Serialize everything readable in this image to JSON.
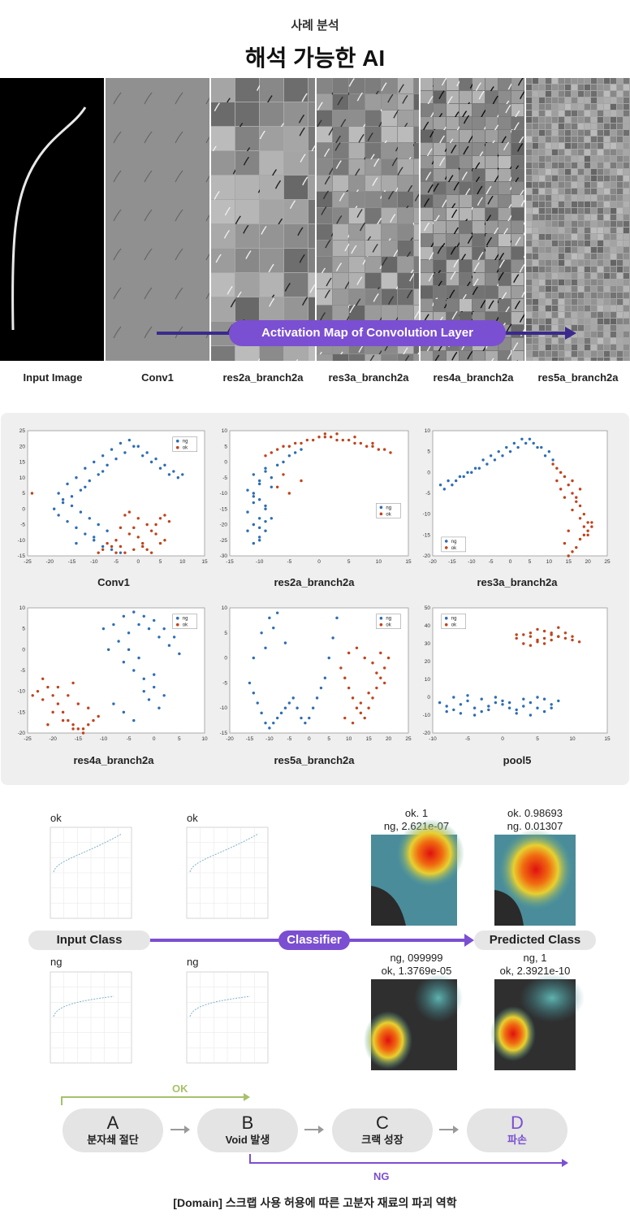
{
  "header": {
    "subtitle": "사례 분석",
    "title": "해석 가능한 AI"
  },
  "activation": {
    "banner": "Activation Map of Convolution Layer",
    "layers": [
      "Input Image",
      "Conv1",
      "res2a_branch2a",
      "res3a_branch2a",
      "res4a_branch2a",
      "res5a_branch2a"
    ],
    "panel_shades": [
      "#000000",
      "#9a9a9a",
      "#a8a8a8",
      "#8f8f8f",
      "#7a7a7a",
      "#a5a5a5"
    ]
  },
  "chart_data": [
    {
      "type": "scatter",
      "title": "Conv1",
      "xlim": [
        -25,
        15
      ],
      "ylim": [
        -15,
        25
      ],
      "xticks": [
        -25,
        -20,
        -15,
        -10,
        -5,
        0,
        5,
        10,
        15
      ],
      "yticks": [
        -15,
        -10,
        -5,
        0,
        5,
        10,
        15,
        20,
        25
      ],
      "legend": [
        "ng",
        "ok"
      ],
      "legend_position": "top-right",
      "series": [
        {
          "name": "ng",
          "color": "#2e6db4",
          "x": [
            -18,
            -16,
            -14,
            -12,
            -10,
            -8,
            -6,
            -4,
            -2,
            0,
            2,
            4,
            6,
            8,
            10,
            -17,
            -15,
            -13,
            -11,
            -9,
            -7,
            -5,
            -3,
            -1,
            1,
            3,
            5,
            7,
            9,
            -19,
            -18,
            -16,
            -14,
            -12,
            -10,
            -8,
            -6,
            -4,
            -15,
            -13,
            -11,
            -9,
            -7,
            -17,
            -12,
            -8,
            -10,
            -14
          ],
          "y": [
            5,
            8,
            10,
            13,
            15,
            17,
            19,
            21,
            22,
            20,
            18,
            16,
            14,
            12,
            11,
            2,
            4,
            6,
            9,
            11,
            14,
            16,
            18,
            20,
            17,
            15,
            13,
            11,
            10,
            0,
            -2,
            -4,
            -6,
            -8,
            -10,
            -12,
            -13,
            -14,
            1,
            -1,
            -3,
            -5,
            -7,
            3,
            7,
            12,
            -9,
            -11
          ]
        },
        {
          "name": "ok",
          "color": "#c0431c",
          "x": [
            -5,
            -4,
            -3,
            -2,
            -1,
            0,
            1,
            2,
            3,
            4,
            5,
            6,
            7,
            -6,
            -5,
            -4,
            -3,
            -2,
            0,
            2,
            4,
            6,
            -1,
            1,
            3,
            5,
            -24,
            -8,
            -7,
            -9
          ],
          "y": [
            -10,
            -12,
            -14,
            -8,
            -6,
            -9,
            -11,
            -13,
            -7,
            -5,
            -3,
            -2,
            -4,
            -12,
            -14,
            -6,
            -2,
            -1,
            -3,
            -5,
            -8,
            -10,
            -13,
            -12,
            -14,
            -11,
            5,
            -13,
            -11,
            -14
          ]
        }
      ]
    },
    {
      "type": "scatter",
      "title": "res2a_branch2a",
      "xlim": [
        -15,
        15
      ],
      "ylim": [
        -30,
        10
      ],
      "xticks": [
        -15,
        -10,
        -5,
        0,
        5,
        10,
        15
      ],
      "yticks": [
        -30,
        -25,
        -20,
        -15,
        -10,
        -5,
        0,
        5,
        10
      ],
      "legend": [
        "ng",
        "ok"
      ],
      "legend_position": "middle-right",
      "series": [
        {
          "name": "ng",
          "color": "#2e6db4",
          "x": [
            -11,
            -10,
            -9,
            -11,
            -10,
            -12,
            -9,
            -10,
            -11,
            -8,
            -10,
            -11,
            -9,
            -12,
            -10,
            -8,
            -9,
            -11,
            -10,
            -9,
            -7,
            -6,
            -8,
            -5,
            -4,
            -3,
            -11,
            -10,
            -12,
            -9
          ],
          "y": [
            -26,
            -24,
            -22,
            -20,
            -18,
            -16,
            -14,
            -12,
            -10,
            -8,
            -6,
            -4,
            -2,
            -22,
            -25,
            -18,
            -15,
            -11,
            -7,
            -3,
            -1,
            0,
            -5,
            2,
            3,
            4,
            -13,
            -21,
            -9,
            -19
          ]
        },
        {
          "name": "ok",
          "color": "#c0431c",
          "x": [
            -9,
            -8,
            -7,
            -6,
            -5,
            -4,
            -3,
            -2,
            -1,
            0,
            1,
            2,
            3,
            4,
            5,
            6,
            7,
            8,
            9,
            10,
            11,
            12,
            -6,
            -7,
            -5,
            -3,
            1,
            3,
            6,
            9
          ],
          "y": [
            2,
            3,
            4,
            5,
            5,
            6,
            6,
            7,
            7,
            8,
            8,
            8,
            7,
            7,
            7,
            6,
            6,
            5,
            5,
            4,
            4,
            3,
            -4,
            -8,
            -10,
            -6,
            9,
            9,
            8,
            6
          ]
        }
      ]
    },
    {
      "type": "scatter",
      "title": "res3a_branch2a",
      "xlim": [
        -20,
        25
      ],
      "ylim": [
        -20,
        10
      ],
      "xticks": [
        -20,
        -15,
        -10,
        -5,
        0,
        5,
        10,
        15,
        20,
        25
      ],
      "yticks": [
        -20,
        -15,
        -10,
        -5,
        0,
        5,
        10
      ],
      "legend": [
        "ng",
        "ok"
      ],
      "legend_position": "bottom-left",
      "series": [
        {
          "name": "ng",
          "color": "#2e6db4",
          "x": [
            -18,
            -16,
            -14,
            -12,
            -10,
            -8,
            -6,
            -4,
            -2,
            0,
            2,
            4,
            6,
            8,
            10,
            -17,
            -15,
            -13,
            -11,
            -9,
            -7,
            -5,
            -3,
            -1,
            1,
            3,
            5,
            7,
            9,
            11
          ],
          "y": [
            -3,
            -2,
            -2,
            -1,
            0,
            1,
            2,
            3,
            4,
            5,
            6,
            7,
            7,
            6,
            5,
            -4,
            -3,
            -1,
            0,
            1,
            3,
            4,
            5,
            6,
            7,
            8,
            8,
            6,
            4,
            3
          ]
        },
        {
          "name": "ok",
          "color": "#c0431c",
          "x": [
            11,
            12,
            13,
            14,
            15,
            16,
            17,
            18,
            19,
            20,
            21,
            20,
            19,
            18,
            17,
            16,
            15,
            12,
            13,
            14,
            16,
            18,
            19,
            20,
            21,
            17,
            18,
            16,
            15,
            14
          ],
          "y": [
            2,
            1,
            0,
            -1,
            -3,
            -5,
            -6,
            -8,
            -10,
            -12,
            -13,
            -14,
            -15,
            -16,
            -18,
            -19,
            -20,
            -2,
            -4,
            -6,
            -9,
            -11,
            -13,
            -15,
            -12,
            -7,
            -4,
            -2,
            -14,
            -17
          ]
        }
      ]
    },
    {
      "type": "scatter",
      "title": "res4a_branch2a",
      "xlim": [
        -25,
        10
      ],
      "ylim": [
        -20,
        10
      ],
      "xticks": [
        -25,
        -20,
        -15,
        -10,
        -5,
        0,
        5,
        10
      ],
      "yticks": [
        -20,
        -15,
        -10,
        -5,
        0,
        5,
        10
      ],
      "legend": [
        "ng",
        "ok"
      ],
      "legend_position": "top-right",
      "series": [
        {
          "name": "ng",
          "color": "#2e6db4",
          "x": [
            -10,
            -8,
            -6,
            -4,
            -2,
            0,
            2,
            4,
            -9,
            -7,
            -5,
            -3,
            -1,
            1,
            3,
            5,
            -6,
            -4,
            -2,
            0,
            2,
            -8,
            -6,
            -4,
            -2,
            0,
            -5,
            -3,
            -1,
            1
          ],
          "y": [
            5,
            6,
            8,
            9,
            8,
            7,
            5,
            3,
            0,
            2,
            4,
            6,
            5,
            3,
            1,
            -1,
            -3,
            -5,
            -7,
            -9,
            -11,
            -13,
            -15,
            -17,
            -10,
            -6,
            0,
            -2,
            -12,
            -14
          ]
        },
        {
          "name": "ok",
          "color": "#c0431c",
          "x": [
            -22,
            -21,
            -20,
            -19,
            -18,
            -17,
            -16,
            -15,
            -14,
            -13,
            -12,
            -23,
            -22,
            -20,
            -18,
            -16,
            -14,
            -19,
            -17,
            -15,
            -24,
            -21,
            -13,
            -11,
            -16
          ],
          "y": [
            -7,
            -9,
            -11,
            -13,
            -15,
            -17,
            -18,
            -19,
            -19,
            -18,
            -17,
            -10,
            -12,
            -15,
            -17,
            -19,
            -20,
            -9,
            -11,
            -13,
            -11,
            -18,
            -14,
            -16,
            -8
          ]
        }
      ]
    },
    {
      "type": "scatter",
      "title": "res5a_branch2a",
      "xlim": [
        -20,
        25
      ],
      "ylim": [
        -15,
        10
      ],
      "xticks": [
        -20,
        -15,
        -10,
        -5,
        0,
        5,
        10,
        15,
        20,
        25
      ],
      "yticks": [
        -15,
        -10,
        -5,
        0,
        5,
        10
      ],
      "legend": [
        "ng",
        "ok"
      ],
      "legend_position": "top-right",
      "series": [
        {
          "name": "ng",
          "color": "#2e6db4",
          "x": [
            -15,
            -14,
            -13,
            -12,
            -11,
            -10,
            -9,
            -8,
            -7,
            -6,
            -5,
            -4,
            -3,
            -2,
            -1,
            0,
            1,
            2,
            3,
            4,
            5,
            6,
            7,
            -12,
            -10,
            -8,
            -14,
            -11,
            -9,
            -6
          ],
          "y": [
            -5,
            -7,
            -9,
            -11,
            -13,
            -14,
            -13,
            -12,
            -11,
            -10,
            -9,
            -8,
            -10,
            -12,
            -13,
            -12,
            -10,
            -8,
            -6,
            -4,
            0,
            4,
            8,
            5,
            8,
            9,
            0,
            2,
            6,
            3
          ]
        },
        {
          "name": "ok",
          "color": "#c0431c",
          "x": [
            8,
            9,
            10,
            11,
            12,
            13,
            14,
            15,
            16,
            17,
            18,
            19,
            20,
            9,
            11,
            13,
            15,
            17,
            10,
            12,
            14,
            16,
            18,
            19
          ],
          "y": [
            -2,
            -4,
            -6,
            -8,
            -10,
            -11,
            -12,
            -10,
            -8,
            -6,
            -4,
            -2,
            0,
            -12,
            -13,
            -9,
            -7,
            -3,
            1,
            2,
            0,
            -1,
            1,
            -5
          ]
        }
      ]
    },
    {
      "type": "scatter",
      "title": "pool5",
      "xlim": [
        -10,
        15
      ],
      "ylim": [
        -20,
        50
      ],
      "xticks": [
        -10,
        -5,
        0,
        5,
        10,
        15
      ],
      "yticks": [
        -20,
        -10,
        0,
        10,
        20,
        30,
        40,
        50
      ],
      "legend": [
        "ng",
        "ok"
      ],
      "legend_position": "top-left",
      "series": [
        {
          "name": "ng",
          "color": "#2e6db4",
          "x": [
            -9,
            -8,
            -7,
            -6,
            -5,
            -4,
            -3,
            -2,
            -1,
            0,
            1,
            2,
            3,
            4,
            5,
            6,
            7,
            8,
            -8,
            -6,
            -4,
            -2,
            0,
            2,
            4,
            6,
            -7,
            -5,
            -3,
            -1,
            1,
            3,
            5,
            7
          ],
          "y": [
            -3,
            -5,
            -7,
            -4,
            -2,
            -6,
            -8,
            -5,
            -3,
            -4,
            -6,
            -7,
            -5,
            -3,
            -6,
            -8,
            -4,
            -2,
            -8,
            -9,
            -10,
            -7,
            -2,
            -9,
            -10,
            -1,
            0,
            1,
            -1,
            0,
            -3,
            -1,
            0,
            -6
          ]
        },
        {
          "name": "ok",
          "color": "#c0431c",
          "x": [
            2,
            3,
            4,
            5,
            6,
            7,
            8,
            9,
            10,
            11,
            3,
            4,
            5,
            6,
            7,
            8,
            9,
            4,
            5,
            6,
            7,
            8,
            2,
            10
          ],
          "y": [
            33,
            35,
            36,
            38,
            37,
            35,
            34,
            33,
            32,
            31,
            30,
            29,
            31,
            33,
            36,
            39,
            36,
            34,
            32,
            30,
            32,
            34,
            35,
            34
          ]
        }
      ]
    }
  ],
  "classifier": {
    "input_class": "Input Class",
    "classifier": "Classifier",
    "predicted_class": "Predicted Class",
    "ok_label_1": "ok",
    "ok_label_2": "ok",
    "ng_label_1": "ng",
    "ng_label_2": "ng",
    "prob_ok_1": [
      "ok. 1",
      "ng, 2.621e-07"
    ],
    "prob_ok_2": [
      "ok. 0.98693",
      "ng. 0.01307"
    ],
    "prob_ng_1": [
      "ng, 099999",
      "ok, 1.3769e-05"
    ],
    "prob_ng_2": [
      "ng, 1",
      "ok, 2.3921e-10"
    ]
  },
  "flow": {
    "stages": [
      {
        "letter": "A",
        "name": "분자쇄 절단"
      },
      {
        "letter": "B",
        "name": "Void 발생"
      },
      {
        "letter": "C",
        "name": "크랙 성장"
      },
      {
        "letter": "D",
        "name": "파손"
      }
    ],
    "ok_label": "OK",
    "ng_label": "NG",
    "ok_color": "#a6c26a",
    "ng_color": "#7b4fd1"
  },
  "footer": "[Domain] 스크랩 사용 허용에 따른 고분자 재료의 파괴 역학"
}
